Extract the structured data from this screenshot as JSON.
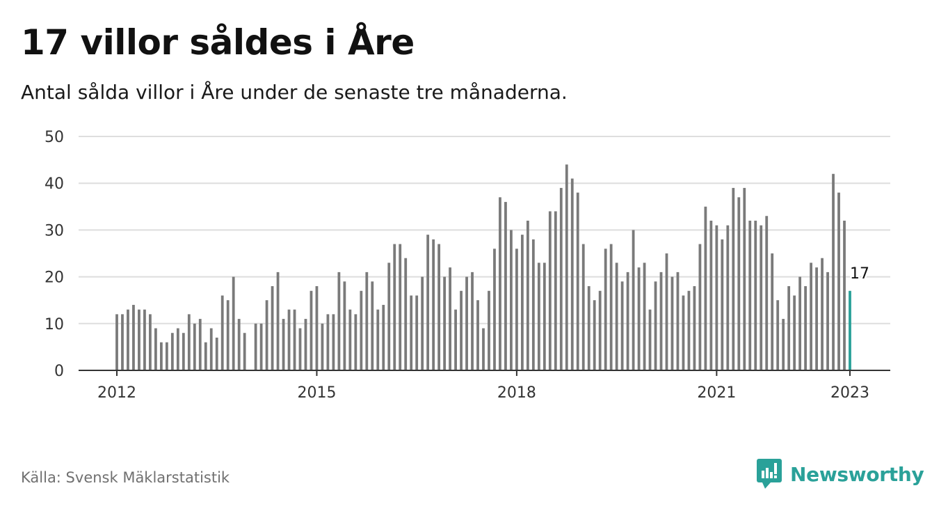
{
  "title": "17 villor såldes i Åre",
  "subtitle": "Antal sålda villor i Åre under de senaste tre månaderna.",
  "source": "Källa: Svensk Mäklarstatistik",
  "brand": "Newsworthy",
  "colors": {
    "bar": "#7a7a7a",
    "highlight": "#2aa199",
    "grid": "#dedede",
    "axis": "#333333",
    "brand": "#2aa199"
  },
  "chart_data": {
    "type": "bar",
    "ylim": [
      0,
      50
    ],
    "yticks": [
      0,
      10,
      20,
      30,
      40,
      50
    ],
    "xticks": [
      "2012",
      "2015",
      "2018",
      "2021",
      "2023"
    ],
    "grid": true,
    "start_month": "2012-01",
    "months": 133,
    "series": [
      {
        "values": [
          12,
          12,
          13,
          14,
          13,
          13,
          12,
          9,
          6,
          6,
          8,
          9,
          8,
          12,
          10,
          11,
          6,
          9,
          7,
          16,
          15,
          20,
          11,
          8,
          null,
          10,
          10,
          15,
          18,
          21,
          11,
          13,
          13,
          9,
          11,
          17,
          18,
          10,
          12,
          12,
          21,
          19,
          13,
          12,
          17,
          21,
          19,
          13,
          14,
          23,
          27,
          27,
          24,
          16,
          16,
          20,
          29,
          28,
          27,
          20,
          22,
          13,
          17,
          20,
          21,
          15,
          9,
          17,
          26,
          37,
          36,
          30,
          26,
          29,
          32,
          28,
          23,
          23,
          34,
          34,
          39,
          44,
          41,
          38,
          27,
          18,
          15,
          17,
          26,
          27,
          23,
          19,
          21,
          30,
          22,
          23,
          13,
          19,
          21,
          25,
          20,
          21,
          16,
          17,
          18,
          27,
          35,
          32,
          31,
          28,
          31,
          39,
          37,
          39,
          32,
          32,
          31,
          33,
          25,
          15,
          11,
          18,
          16,
          20,
          18,
          23,
          22,
          24,
          21,
          42,
          38,
          32,
          17
        ]
      }
    ],
    "annotations": [
      {
        "label": "17",
        "index": 132
      }
    ]
  }
}
